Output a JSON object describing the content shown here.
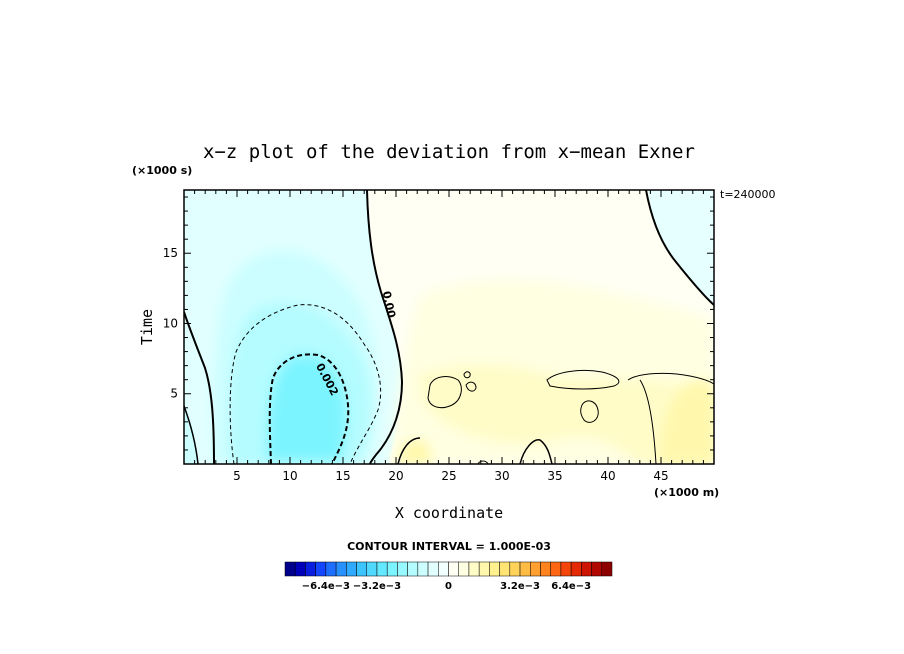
{
  "chart_data": {
    "type": "heatmap",
    "title": "x−z plot of the deviation from x−mean Exner",
    "xlabel": "X coordinate",
    "ylabel": "Time",
    "x_unit": "(×1000 m)",
    "y_unit": "(×1000 s)",
    "time_stamp": "t=240000",
    "xlim": [
      0,
      50
    ],
    "ylim": [
      0,
      19.5
    ],
    "x_ticks": [
      "5",
      "10",
      "15",
      "20",
      "25",
      "30",
      "35",
      "40",
      "45"
    ],
    "y_ticks": [
      "5",
      "10",
      "15"
    ],
    "x_tick_values": [
      5,
      10,
      15,
      20,
      25,
      30,
      35,
      40,
      45
    ],
    "y_tick_values": [
      5,
      10,
      15
    ],
    "contour_interval_text": "CONTOUR INTERVAL = 1.000E-03",
    "contour_labels": [
      {
        "text": "0.00",
        "x": 19.0,
        "y": 11.3,
        "angle": 78
      },
      {
        "text": "0.002",
        "x": 13.2,
        "y": 5.9,
        "angle": 62
      }
    ],
    "colorbar": {
      "tick_labels": [
        "−6.4e−3",
        "−3.2e−3",
        "0",
        "3.2e−3",
        "6.4e−3"
      ],
      "colors": [
        "#00008a",
        "#0000b8",
        "#0a1ee0",
        "#1446ff",
        "#1e6eff",
        "#2890ff",
        "#30aaff",
        "#3cc4ff",
        "#50d8ff",
        "#64e8ff",
        "#7cf4ff",
        "#98f8ff",
        "#b4fcff",
        "#ccfeff",
        "#e2ffff",
        "#f2ffff",
        "#fffff4",
        "#ffffe2",
        "#fffcc8",
        "#fff8ac",
        "#fff090",
        "#ffe474",
        "#ffd25a",
        "#ffbc44",
        "#ffa030",
        "#ff8420",
        "#ff6614",
        "#f4460a",
        "#e42a04",
        "#cc1400",
        "#b00800",
        "#8c0000"
      ]
    },
    "regions": [
      {
        "value": -0.0005,
        "color": "#e2ffff",
        "desc": "light cyan west region"
      },
      {
        "value": -0.001,
        "color": "#ccfeff",
        "desc": "cyan halo"
      },
      {
        "value": -0.002,
        "color": "#b4fcff",
        "desc": "cyan interior"
      },
      {
        "value": -0.003,
        "color": "#7cf4ff",
        "desc": "cyan core near x=12, t=3"
      },
      {
        "value": 0.0005,
        "color": "#fffff4",
        "desc": "pale yellow east region"
      },
      {
        "value": 0.001,
        "color": "#ffffe2",
        "desc": "light yellow band"
      },
      {
        "value": 0.002,
        "color": "#fffcc8",
        "desc": "yellow patches"
      },
      {
        "value": 0.0005,
        "color": "#e6ffff",
        "desc": "cyan NE corner"
      }
    ]
  }
}
